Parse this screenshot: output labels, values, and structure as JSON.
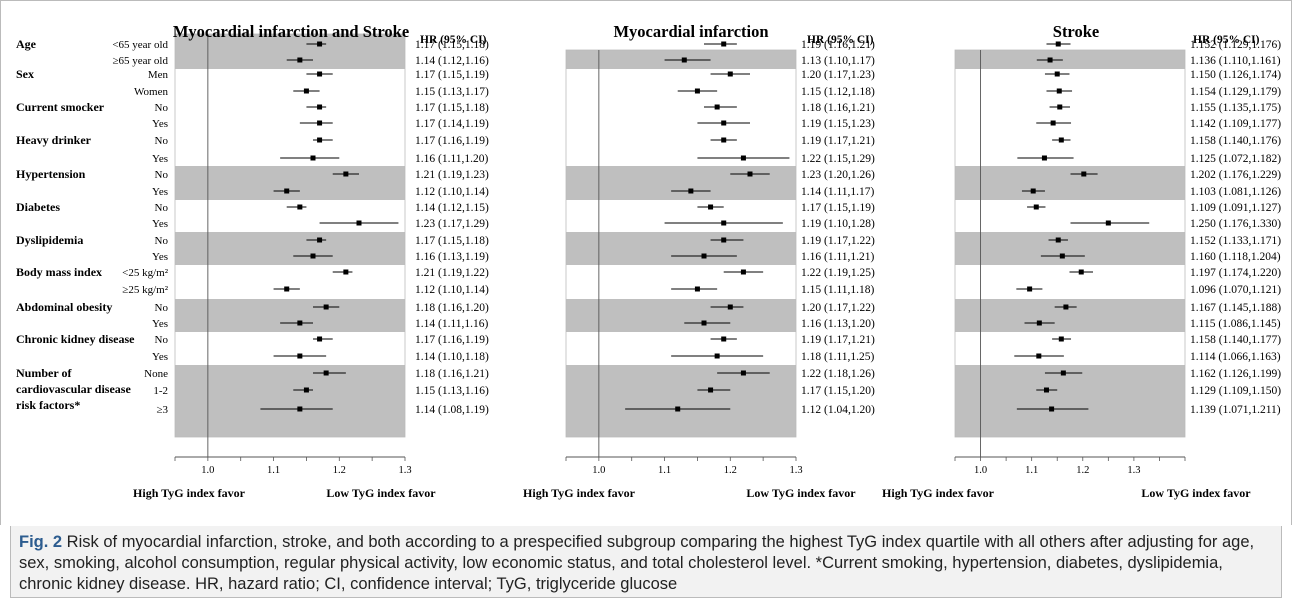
{
  "hr_header": "HR (95% CI)",
  "favor_left": "High TyG index favor",
  "favor_right": "Low TyG index favor",
  "caption": {
    "label": "Fig. 2",
    "text": " Risk of myocardial infarction, stroke, and both according to a prespecified subgroup comparing the highest TyG index quartile with all others after adjusting for age, sex, smoking, alcohol consumption, regular physical activity, low economic status, and total cholesterol level. *Current smoking, hypertension, diabetes, dyslipidemia, chronic kidney disease. HR, hazard ratio; CI, confidence interval; TyG, triglyceride glucose"
  },
  "groups": [
    {
      "label": "Age",
      "rows": [
        "<65 year old",
        "≥65 year old"
      ]
    },
    {
      "label": "Sex",
      "rows": [
        "Men",
        "Women"
      ]
    },
    {
      "label": "Current smocker",
      "rows": [
        "No",
        "Yes"
      ]
    },
    {
      "label": "Heavy drinker",
      "rows": [
        "No",
        "Yes"
      ]
    },
    {
      "label": "Hypertension",
      "rows": [
        "No",
        "Yes"
      ]
    },
    {
      "label": "Diabetes",
      "rows": [
        "No",
        "Yes"
      ]
    },
    {
      "label": "Dyslipidemia",
      "rows": [
        "No",
        "Yes"
      ]
    },
    {
      "label": "Body mass index",
      "rows": [
        "<25 kg/m²",
        "≥25 kg/m²"
      ]
    },
    {
      "label": "Abdominal obesity",
      "rows": [
        "No",
        "Yes"
      ]
    },
    {
      "label": "Chronic kidney disease",
      "rows": [
        "No",
        "Yes"
      ]
    },
    {
      "label": "Number of cardiovascular disease risk factors*",
      "label_lines": [
        "Number of",
        "cardiovascular disease",
        "risk factors*"
      ],
      "rows": [
        "None",
        "1-2",
        "≥3"
      ]
    }
  ],
  "shaded_groups": [
    0,
    4,
    6,
    8,
    10
  ],
  "chart_data": [
    {
      "type": "forest",
      "title": "Myocardial infarction and Stroke",
      "xlim": [
        0.95,
        1.3
      ],
      "ticks": [
        "1.0",
        "1.1",
        "1.2",
        "1.3"
      ],
      "reference_line": 1.0,
      "points": [
        {
          "hr": 1.17,
          "lo": 1.15,
          "hi": 1.18,
          "label": "1.17 (1.15,1.18)"
        },
        {
          "hr": 1.14,
          "lo": 1.12,
          "hi": 1.16,
          "label": "1.14 (1.12,1.16)"
        },
        {
          "hr": 1.17,
          "lo": 1.15,
          "hi": 1.19,
          "label": "1.17 (1.15,1.19)"
        },
        {
          "hr": 1.15,
          "lo": 1.13,
          "hi": 1.17,
          "label": "1.15 (1.13,1.17)"
        },
        {
          "hr": 1.17,
          "lo": 1.15,
          "hi": 1.18,
          "label": "1.17 (1.15,1.18)"
        },
        {
          "hr": 1.17,
          "lo": 1.14,
          "hi": 1.19,
          "label": "1.17 (1.14,1.19)"
        },
        {
          "hr": 1.17,
          "lo": 1.16,
          "hi": 1.19,
          "label": "1.17 (1.16,1.19)"
        },
        {
          "hr": 1.16,
          "lo": 1.11,
          "hi": 1.2,
          "label": "1.16 (1.11,1.20)"
        },
        {
          "hr": 1.21,
          "lo": 1.19,
          "hi": 1.23,
          "label": "1.21 (1.19,1.23)"
        },
        {
          "hr": 1.12,
          "lo": 1.1,
          "hi": 1.14,
          "label": "1.12 (1.10,1.14)"
        },
        {
          "hr": 1.14,
          "lo": 1.12,
          "hi": 1.15,
          "label": "1.14 (1.12,1.15)"
        },
        {
          "hr": 1.23,
          "lo": 1.17,
          "hi": 1.29,
          "label": "1.23 (1.17,1.29)"
        },
        {
          "hr": 1.17,
          "lo": 1.15,
          "hi": 1.18,
          "label": "1.17 (1.15,1.18)"
        },
        {
          "hr": 1.16,
          "lo": 1.13,
          "hi": 1.19,
          "label": "1.16 (1.13,1.19)"
        },
        {
          "hr": 1.21,
          "lo": 1.19,
          "hi": 1.22,
          "label": "1.21 (1.19,1.22)"
        },
        {
          "hr": 1.12,
          "lo": 1.1,
          "hi": 1.14,
          "label": "1.12 (1.10,1.14)"
        },
        {
          "hr": 1.18,
          "lo": 1.16,
          "hi": 1.2,
          "label": "1.18 (1.16,1.20)"
        },
        {
          "hr": 1.14,
          "lo": 1.11,
          "hi": 1.16,
          "label": "1.14 (1.11,1.16)"
        },
        {
          "hr": 1.17,
          "lo": 1.16,
          "hi": 1.19,
          "label": "1.17 (1.16,1.19)"
        },
        {
          "hr": 1.14,
          "lo": 1.1,
          "hi": 1.18,
          "label": "1.14 (1.10,1.18)"
        },
        {
          "hr": 1.18,
          "lo": 1.16,
          "hi": 1.21,
          "label": "1.18 (1.16,1.21)"
        },
        {
          "hr": 1.15,
          "lo": 1.13,
          "hi": 1.16,
          "label": "1.15 (1.13,1.16)"
        },
        {
          "hr": 1.14,
          "lo": 1.08,
          "hi": 1.19,
          "label": "1.14 (1.08,1.19)"
        }
      ]
    },
    {
      "type": "forest",
      "title": "Myocardial infarction",
      "xlim": [
        0.95,
        1.3
      ],
      "ticks": [
        "1.0",
        "1.1",
        "1.2",
        "1.3"
      ],
      "reference_line": 1.0,
      "points": [
        {
          "hr": 1.19,
          "lo": 1.16,
          "hi": 1.21,
          "label": "1.19 (1.16,1.21)"
        },
        {
          "hr": 1.13,
          "lo": 1.1,
          "hi": 1.17,
          "label": "1.13 (1.10,1.17)"
        },
        {
          "hr": 1.2,
          "lo": 1.17,
          "hi": 1.23,
          "label": "1.20 (1.17,1.23)"
        },
        {
          "hr": 1.15,
          "lo": 1.12,
          "hi": 1.18,
          "label": "1.15 (1.12,1.18)"
        },
        {
          "hr": 1.18,
          "lo": 1.16,
          "hi": 1.21,
          "label": "1.18 (1.16,1.21)"
        },
        {
          "hr": 1.19,
          "lo": 1.15,
          "hi": 1.23,
          "label": "1.19 (1.15,1.23)"
        },
        {
          "hr": 1.19,
          "lo": 1.17,
          "hi": 1.21,
          "label": "1.19 (1.17,1.21)"
        },
        {
          "hr": 1.22,
          "lo": 1.15,
          "hi": 1.29,
          "label": "1.22 (1.15,1.29)"
        },
        {
          "hr": 1.23,
          "lo": 1.2,
          "hi": 1.26,
          "label": "1.23 (1.20,1.26)"
        },
        {
          "hr": 1.14,
          "lo": 1.11,
          "hi": 1.17,
          "label": "1.14 (1.11,1.17)"
        },
        {
          "hr": 1.17,
          "lo": 1.15,
          "hi": 1.19,
          "label": "1.17 (1.15,1.19)"
        },
        {
          "hr": 1.19,
          "lo": 1.1,
          "hi": 1.28,
          "label": "1.19 (1.10,1.28)"
        },
        {
          "hr": 1.19,
          "lo": 1.17,
          "hi": 1.22,
          "label": "1.19 (1.17,1.22)"
        },
        {
          "hr": 1.16,
          "lo": 1.11,
          "hi": 1.21,
          "label": "1.16 (1.11,1.21)"
        },
        {
          "hr": 1.22,
          "lo": 1.19,
          "hi": 1.25,
          "label": "1.22 (1.19,1.25)"
        },
        {
          "hr": 1.15,
          "lo": 1.11,
          "hi": 1.18,
          "label": "1.15 (1.11,1.18)"
        },
        {
          "hr": 1.2,
          "lo": 1.17,
          "hi": 1.22,
          "label": "1.20 (1.17,1.22)"
        },
        {
          "hr": 1.16,
          "lo": 1.13,
          "hi": 1.2,
          "label": "1.16 (1.13,1.20)"
        },
        {
          "hr": 1.19,
          "lo": 1.17,
          "hi": 1.21,
          "label": "1.19 (1.17,1.21)"
        },
        {
          "hr": 1.18,
          "lo": 1.11,
          "hi": 1.25,
          "label": "1.18 (1.11,1.25)"
        },
        {
          "hr": 1.22,
          "lo": 1.18,
          "hi": 1.26,
          "label": "1.22 (1.18,1.26)"
        },
        {
          "hr": 1.17,
          "lo": 1.15,
          "hi": 1.2,
          "label": "1.17 (1.15,1.20)"
        },
        {
          "hr": 1.12,
          "lo": 1.04,
          "hi": 1.2,
          "label": "1.12 (1.04,1.20)"
        }
      ]
    },
    {
      "type": "forest",
      "title": "Stroke",
      "xlim": [
        0.95,
        1.4
      ],
      "ticks": [
        "1.0",
        "1.1",
        "1.2",
        "1.3"
      ],
      "reference_line": 1.0,
      "points": [
        {
          "hr": 1.152,
          "lo": 1.129,
          "hi": 1.176,
          "label": "1.152 (1.129,1.176)"
        },
        {
          "hr": 1.136,
          "lo": 1.11,
          "hi": 1.161,
          "label": "1.136 (1.110,1.161)"
        },
        {
          "hr": 1.15,
          "lo": 1.126,
          "hi": 1.174,
          "label": "1.150 (1.126,1.174)"
        },
        {
          "hr": 1.154,
          "lo": 1.129,
          "hi": 1.179,
          "label": "1.154 (1.129,1.179)"
        },
        {
          "hr": 1.155,
          "lo": 1.135,
          "hi": 1.175,
          "label": "1.155 (1.135,1.175)"
        },
        {
          "hr": 1.142,
          "lo": 1.109,
          "hi": 1.177,
          "label": "1.142 (1.109,1.177)"
        },
        {
          "hr": 1.158,
          "lo": 1.14,
          "hi": 1.176,
          "label": "1.158 (1.140,1.176)"
        },
        {
          "hr": 1.125,
          "lo": 1.072,
          "hi": 1.182,
          "label": "1.125 (1.072,1.182)"
        },
        {
          "hr": 1.202,
          "lo": 1.176,
          "hi": 1.229,
          "label": "1.202 (1.176,1.229)"
        },
        {
          "hr": 1.103,
          "lo": 1.081,
          "hi": 1.126,
          "label": "1.103 (1.081,1.126)"
        },
        {
          "hr": 1.109,
          "lo": 1.091,
          "hi": 1.127,
          "label": "1.109 (1.091,1.127)"
        },
        {
          "hr": 1.25,
          "lo": 1.176,
          "hi": 1.33,
          "label": "1.250 (1.176,1.330)"
        },
        {
          "hr": 1.152,
          "lo": 1.133,
          "hi": 1.171,
          "label": "1.152 (1.133,1.171)"
        },
        {
          "hr": 1.16,
          "lo": 1.118,
          "hi": 1.204,
          "label": "1.160 (1.118,1.204)"
        },
        {
          "hr": 1.197,
          "lo": 1.174,
          "hi": 1.22,
          "label": "1.197 (1.174,1.220)"
        },
        {
          "hr": 1.096,
          "lo": 1.07,
          "hi": 1.121,
          "label": "1.096 (1.070,1.121)"
        },
        {
          "hr": 1.167,
          "lo": 1.145,
          "hi": 1.188,
          "label": "1.167 (1.145,1.188)"
        },
        {
          "hr": 1.115,
          "lo": 1.086,
          "hi": 1.145,
          "label": "1.115 (1.086,1.145)"
        },
        {
          "hr": 1.158,
          "lo": 1.14,
          "hi": 1.177,
          "label": "1.158 (1.140,1.177)"
        },
        {
          "hr": 1.114,
          "lo": 1.066,
          "hi": 1.163,
          "label": "1.114 (1.066,1.163)"
        },
        {
          "hr": 1.162,
          "lo": 1.126,
          "hi": 1.199,
          "label": "1.162 (1.126,1.199)"
        },
        {
          "hr": 1.129,
          "lo": 1.109,
          "hi": 1.15,
          "label": "1.129 (1.109,1.150)"
        },
        {
          "hr": 1.139,
          "lo": 1.071,
          "hi": 1.211,
          "label": "1.139 (1.071,1.211)"
        }
      ]
    }
  ]
}
